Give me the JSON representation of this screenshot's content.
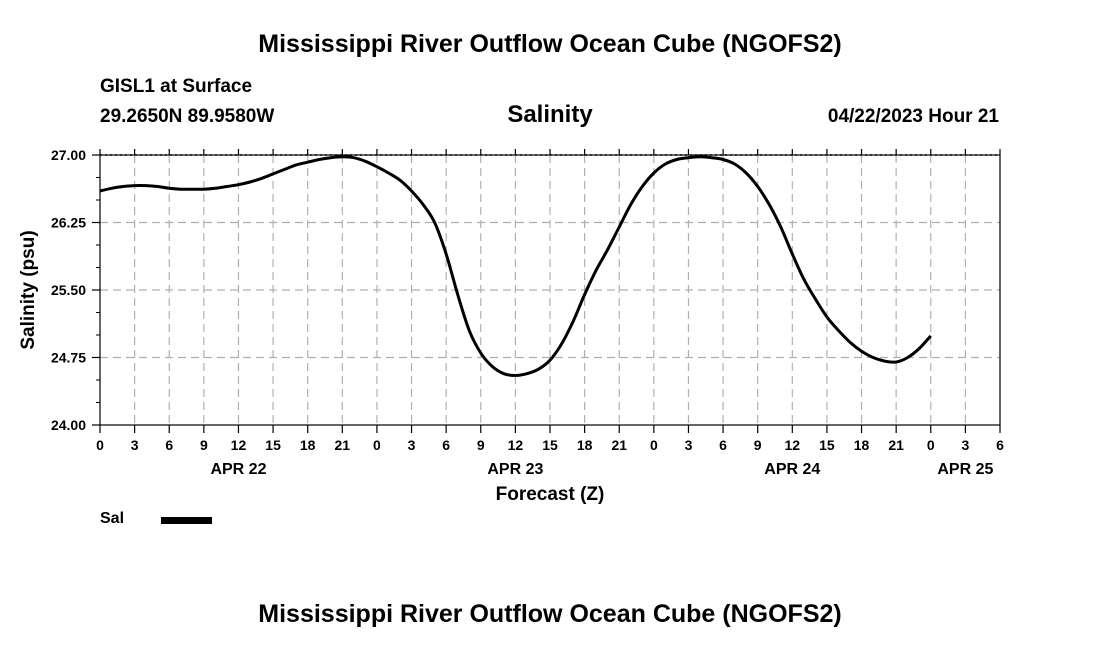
{
  "header": {
    "title": "Mississippi River Outflow Ocean Cube (NGOFS2)",
    "station": "GISL1 at Surface",
    "coordinates": "29.2650N  89.9580W",
    "datetime": "04/22/2023 Hour 21"
  },
  "footer": {
    "title": "Mississippi River Outflow Ocean Cube (NGOFS2)"
  },
  "chart_data": {
    "type": "line",
    "title": "Salinity",
    "xlabel": "Forecast (Z)",
    "ylabel": "Salinity (psu)",
    "xlim": [
      0,
      78
    ],
    "ylim": [
      24.0,
      27.0
    ],
    "grid": true,
    "y_ticks": [
      "24.00",
      "24.75",
      "25.50",
      "26.25",
      "27.00"
    ],
    "x_tick_labels": [
      "0",
      "3",
      "6",
      "9",
      "12",
      "15",
      "18",
      "21",
      "0",
      "3",
      "6",
      "9",
      "12",
      "15",
      "18",
      "21",
      "0",
      "3",
      "6",
      "9",
      "12",
      "15",
      "18",
      "21",
      "0",
      "3",
      "6"
    ],
    "day_labels": [
      {
        "label": "APR 22",
        "hour": 12
      },
      {
        "label": "APR 23",
        "hour": 36
      },
      {
        "label": "APR 24",
        "hour": 60
      },
      {
        "label": "APR 25",
        "hour": 75
      }
    ],
    "legend": [
      {
        "name": "Sal",
        "color": "#000000"
      }
    ],
    "series": [
      {
        "name": "Sal",
        "color": "#000000",
        "points": [
          [
            0,
            26.6
          ],
          [
            1,
            26.63
          ],
          [
            2,
            26.65
          ],
          [
            3,
            26.66
          ],
          [
            4,
            26.66
          ],
          [
            5,
            26.65
          ],
          [
            6,
            26.63
          ],
          [
            7,
            26.62
          ],
          [
            8,
            26.62
          ],
          [
            9,
            26.62
          ],
          [
            10,
            26.63
          ],
          [
            11,
            26.65
          ],
          [
            12,
            26.67
          ],
          [
            13,
            26.7
          ],
          [
            14,
            26.74
          ],
          [
            15,
            26.79
          ],
          [
            16,
            26.84
          ],
          [
            17,
            26.89
          ],
          [
            18,
            26.92
          ],
          [
            19,
            26.95
          ],
          [
            20,
            26.97
          ],
          [
            21,
            26.98
          ],
          [
            22,
            26.97
          ],
          [
            23,
            26.93
          ],
          [
            24,
            26.87
          ],
          [
            25,
            26.8
          ],
          [
            26,
            26.72
          ],
          [
            27,
            26.6
          ],
          [
            28,
            26.45
          ],
          [
            29,
            26.25
          ],
          [
            30,
            25.9
          ],
          [
            31,
            25.45
          ],
          [
            32,
            25.05
          ],
          [
            33,
            24.8
          ],
          [
            34,
            24.65
          ],
          [
            35,
            24.57
          ],
          [
            36,
            24.55
          ],
          [
            37,
            24.57
          ],
          [
            38,
            24.62
          ],
          [
            39,
            24.72
          ],
          [
            40,
            24.9
          ],
          [
            41,
            25.15
          ],
          [
            42,
            25.45
          ],
          [
            43,
            25.72
          ],
          [
            44,
            25.95
          ],
          [
            45,
            26.2
          ],
          [
            46,
            26.45
          ],
          [
            47,
            26.65
          ],
          [
            48,
            26.8
          ],
          [
            49,
            26.9
          ],
          [
            50,
            26.95
          ],
          [
            51,
            26.97
          ],
          [
            52,
            26.98
          ],
          [
            53,
            26.97
          ],
          [
            54,
            26.95
          ],
          [
            55,
            26.9
          ],
          [
            56,
            26.8
          ],
          [
            57,
            26.65
          ],
          [
            58,
            26.45
          ],
          [
            59,
            26.2
          ],
          [
            60,
            25.9
          ],
          [
            61,
            25.62
          ],
          [
            62,
            25.4
          ],
          [
            63,
            25.2
          ],
          [
            64,
            25.05
          ],
          [
            65,
            24.92
          ],
          [
            66,
            24.82
          ],
          [
            67,
            24.75
          ],
          [
            68,
            24.71
          ],
          [
            69,
            24.7
          ],
          [
            70,
            24.75
          ],
          [
            71,
            24.85
          ],
          [
            72,
            24.99
          ]
        ]
      }
    ]
  }
}
